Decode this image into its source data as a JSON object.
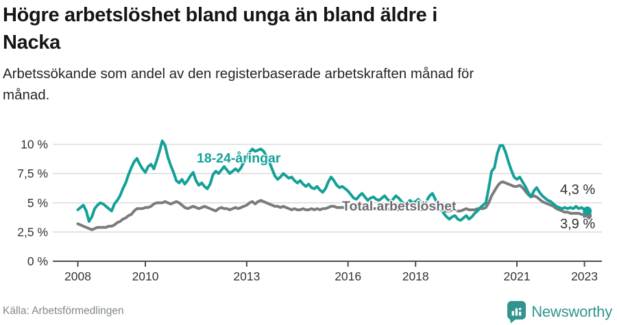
{
  "header": {
    "title_line1": "Högre arbetslöshet bland unga än bland äldre i",
    "title_line2": "Nacka",
    "subtitle_line1": "Arbetssökande som andel av den registerbaserade arbetskraften månad för",
    "subtitle_line2": "månad."
  },
  "footer": {
    "source": "Källa: Arbetsförmedlingen",
    "brand": "Newsworthy"
  },
  "colors": {
    "young": "#14a097",
    "total": "#7b7b7b",
    "total_label": "#6b6b72",
    "brand_teal": "#2f958e",
    "grid": "#dadada",
    "axis": "#4d4d4d",
    "tick_text": "#333333"
  },
  "chart_data": {
    "type": "line",
    "title": "Högre arbetslöshet bland unga än bland äldre i Nacka",
    "subtitle": "Arbetssökande som andel av den registerbaserade arbetskraften månad för månad.",
    "x_start": 2008.0,
    "x_step_months": 1,
    "x_ticks": [
      2008,
      2010,
      2013,
      2016,
      2018,
      2021,
      2023
    ],
    "y_ticks": [
      0,
      2.5,
      5,
      7.5,
      10
    ],
    "y_tick_labels": [
      "0 %",
      "2,5 %",
      "5 %",
      "7,5 %",
      "10 %"
    ],
    "ylim": [
      0,
      10.8
    ],
    "legend_position": "inline-annotations",
    "grid": true,
    "series": [
      {
        "name": "Total arbetslöshet",
        "end_label": "3,9 %",
        "end_value": 3.9,
        "color": "#7b7b7b",
        "values": [
          3.2,
          3.1,
          3.0,
          2.9,
          2.8,
          2.7,
          2.8,
          2.9,
          2.9,
          2.9,
          2.9,
          3.0,
          3.0,
          3.1,
          3.3,
          3.4,
          3.6,
          3.7,
          3.9,
          4.0,
          4.3,
          4.5,
          4.5,
          4.5,
          4.6,
          4.6,
          4.7,
          4.9,
          5.0,
          5.0,
          5.0,
          5.1,
          5.0,
          4.9,
          5.0,
          5.1,
          5.0,
          4.8,
          4.6,
          4.5,
          4.6,
          4.7,
          4.6,
          4.5,
          4.6,
          4.7,
          4.6,
          4.5,
          4.4,
          4.3,
          4.5,
          4.6,
          4.5,
          4.5,
          4.4,
          4.5,
          4.6,
          4.5,
          4.6,
          4.7,
          4.8,
          5.0,
          5.1,
          4.9,
          5.1,
          5.2,
          5.1,
          5.0,
          4.9,
          4.8,
          4.7,
          4.7,
          4.6,
          4.7,
          4.6,
          4.5,
          4.4,
          4.5,
          4.4,
          4.4,
          4.5,
          4.4,
          4.4,
          4.5,
          4.4,
          4.5,
          4.4,
          4.5,
          4.5,
          4.6,
          4.7,
          4.7,
          4.6,
          4.6,
          4.6,
          4.6,
          4.6,
          4.6,
          4.5,
          4.5,
          4.6,
          4.6,
          4.5,
          4.5,
          4.5,
          4.5,
          4.5,
          4.5,
          4.5,
          4.6,
          4.5,
          4.4,
          4.5,
          4.5,
          4.4,
          4.4,
          4.5,
          4.5,
          4.4,
          4.4,
          4.5,
          4.5,
          4.4,
          4.4,
          4.5,
          4.6,
          4.6,
          4.5,
          4.4,
          4.4,
          4.3,
          4.3,
          4.3,
          4.4,
          4.4,
          4.3,
          4.3,
          4.4,
          4.5,
          4.4,
          4.4,
          4.4,
          4.5,
          4.5,
          4.5,
          4.6,
          5.0,
          5.6,
          6.0,
          6.4,
          6.7,
          6.8,
          6.7,
          6.6,
          6.5,
          6.4,
          6.4,
          6.5,
          6.3,
          6.0,
          5.7,
          5.5,
          5.6,
          5.5,
          5.3,
          5.1,
          5.0,
          4.9,
          4.8,
          4.7,
          4.5,
          4.4,
          4.3,
          4.2,
          4.2,
          4.1,
          4.1,
          4.1,
          4.1,
          4.0,
          4.0,
          3.9
        ]
      },
      {
        "name": "18-24-åringar",
        "end_label": "4,3 %",
        "end_value": 4.3,
        "color": "#14a097",
        "values": [
          4.4,
          4.6,
          4.8,
          4.3,
          3.4,
          3.8,
          4.5,
          4.8,
          5.0,
          4.9,
          4.7,
          4.5,
          4.3,
          4.9,
          5.2,
          5.6,
          6.2,
          6.7,
          7.4,
          8.0,
          8.5,
          8.8,
          8.3,
          7.9,
          7.6,
          8.1,
          8.3,
          7.9,
          8.6,
          9.4,
          10.3,
          9.9,
          8.9,
          8.2,
          7.6,
          6.9,
          6.7,
          7.0,
          6.6,
          6.9,
          7.3,
          7.6,
          6.9,
          6.5,
          6.7,
          6.4,
          6.2,
          6.6,
          7.4,
          7.7,
          7.5,
          7.8,
          8.1,
          7.8,
          7.5,
          7.7,
          7.9,
          7.7,
          8.0,
          8.5,
          8.9,
          9.3,
          9.6,
          9.4,
          9.5,
          9.6,
          9.4,
          9.0,
          8.5,
          7.9,
          7.3,
          7.0,
          7.2,
          7.5,
          7.3,
          7.1,
          7.2,
          6.9,
          6.7,
          6.9,
          6.6,
          6.4,
          6.6,
          6.3,
          6.2,
          6.4,
          6.1,
          5.9,
          6.2,
          6.8,
          7.2,
          6.9,
          6.5,
          6.3,
          6.4,
          6.2,
          6.0,
          5.7,
          5.4,
          5.3,
          5.6,
          5.8,
          5.5,
          5.2,
          5.4,
          5.5,
          5.3,
          5.2,
          5.4,
          5.6,
          5.3,
          5.1,
          5.3,
          5.6,
          5.4,
          5.1,
          4.9,
          5.0,
          5.2,
          5.0,
          5.1,
          5.3,
          5.0,
          4.8,
          5.2,
          5.6,
          5.8,
          5.3,
          4.9,
          4.5,
          4.1,
          3.8,
          3.6,
          3.8,
          3.9,
          3.6,
          3.5,
          3.7,
          3.9,
          3.6,
          3.8,
          4.1,
          4.3,
          4.6,
          4.8,
          5.0,
          6.3,
          7.7,
          8.0,
          9.2,
          9.9,
          9.9,
          9.3,
          8.5,
          7.8,
          7.2,
          7.0,
          7.2,
          6.8,
          6.4,
          5.9,
          5.5,
          6.0,
          6.3,
          5.9,
          5.6,
          5.4,
          5.2,
          5.1,
          4.9,
          4.7,
          4.6,
          4.5,
          4.6,
          4.5,
          4.6,
          4.5,
          4.7,
          4.5,
          4.6,
          4.4,
          4.3
        ]
      }
    ]
  }
}
